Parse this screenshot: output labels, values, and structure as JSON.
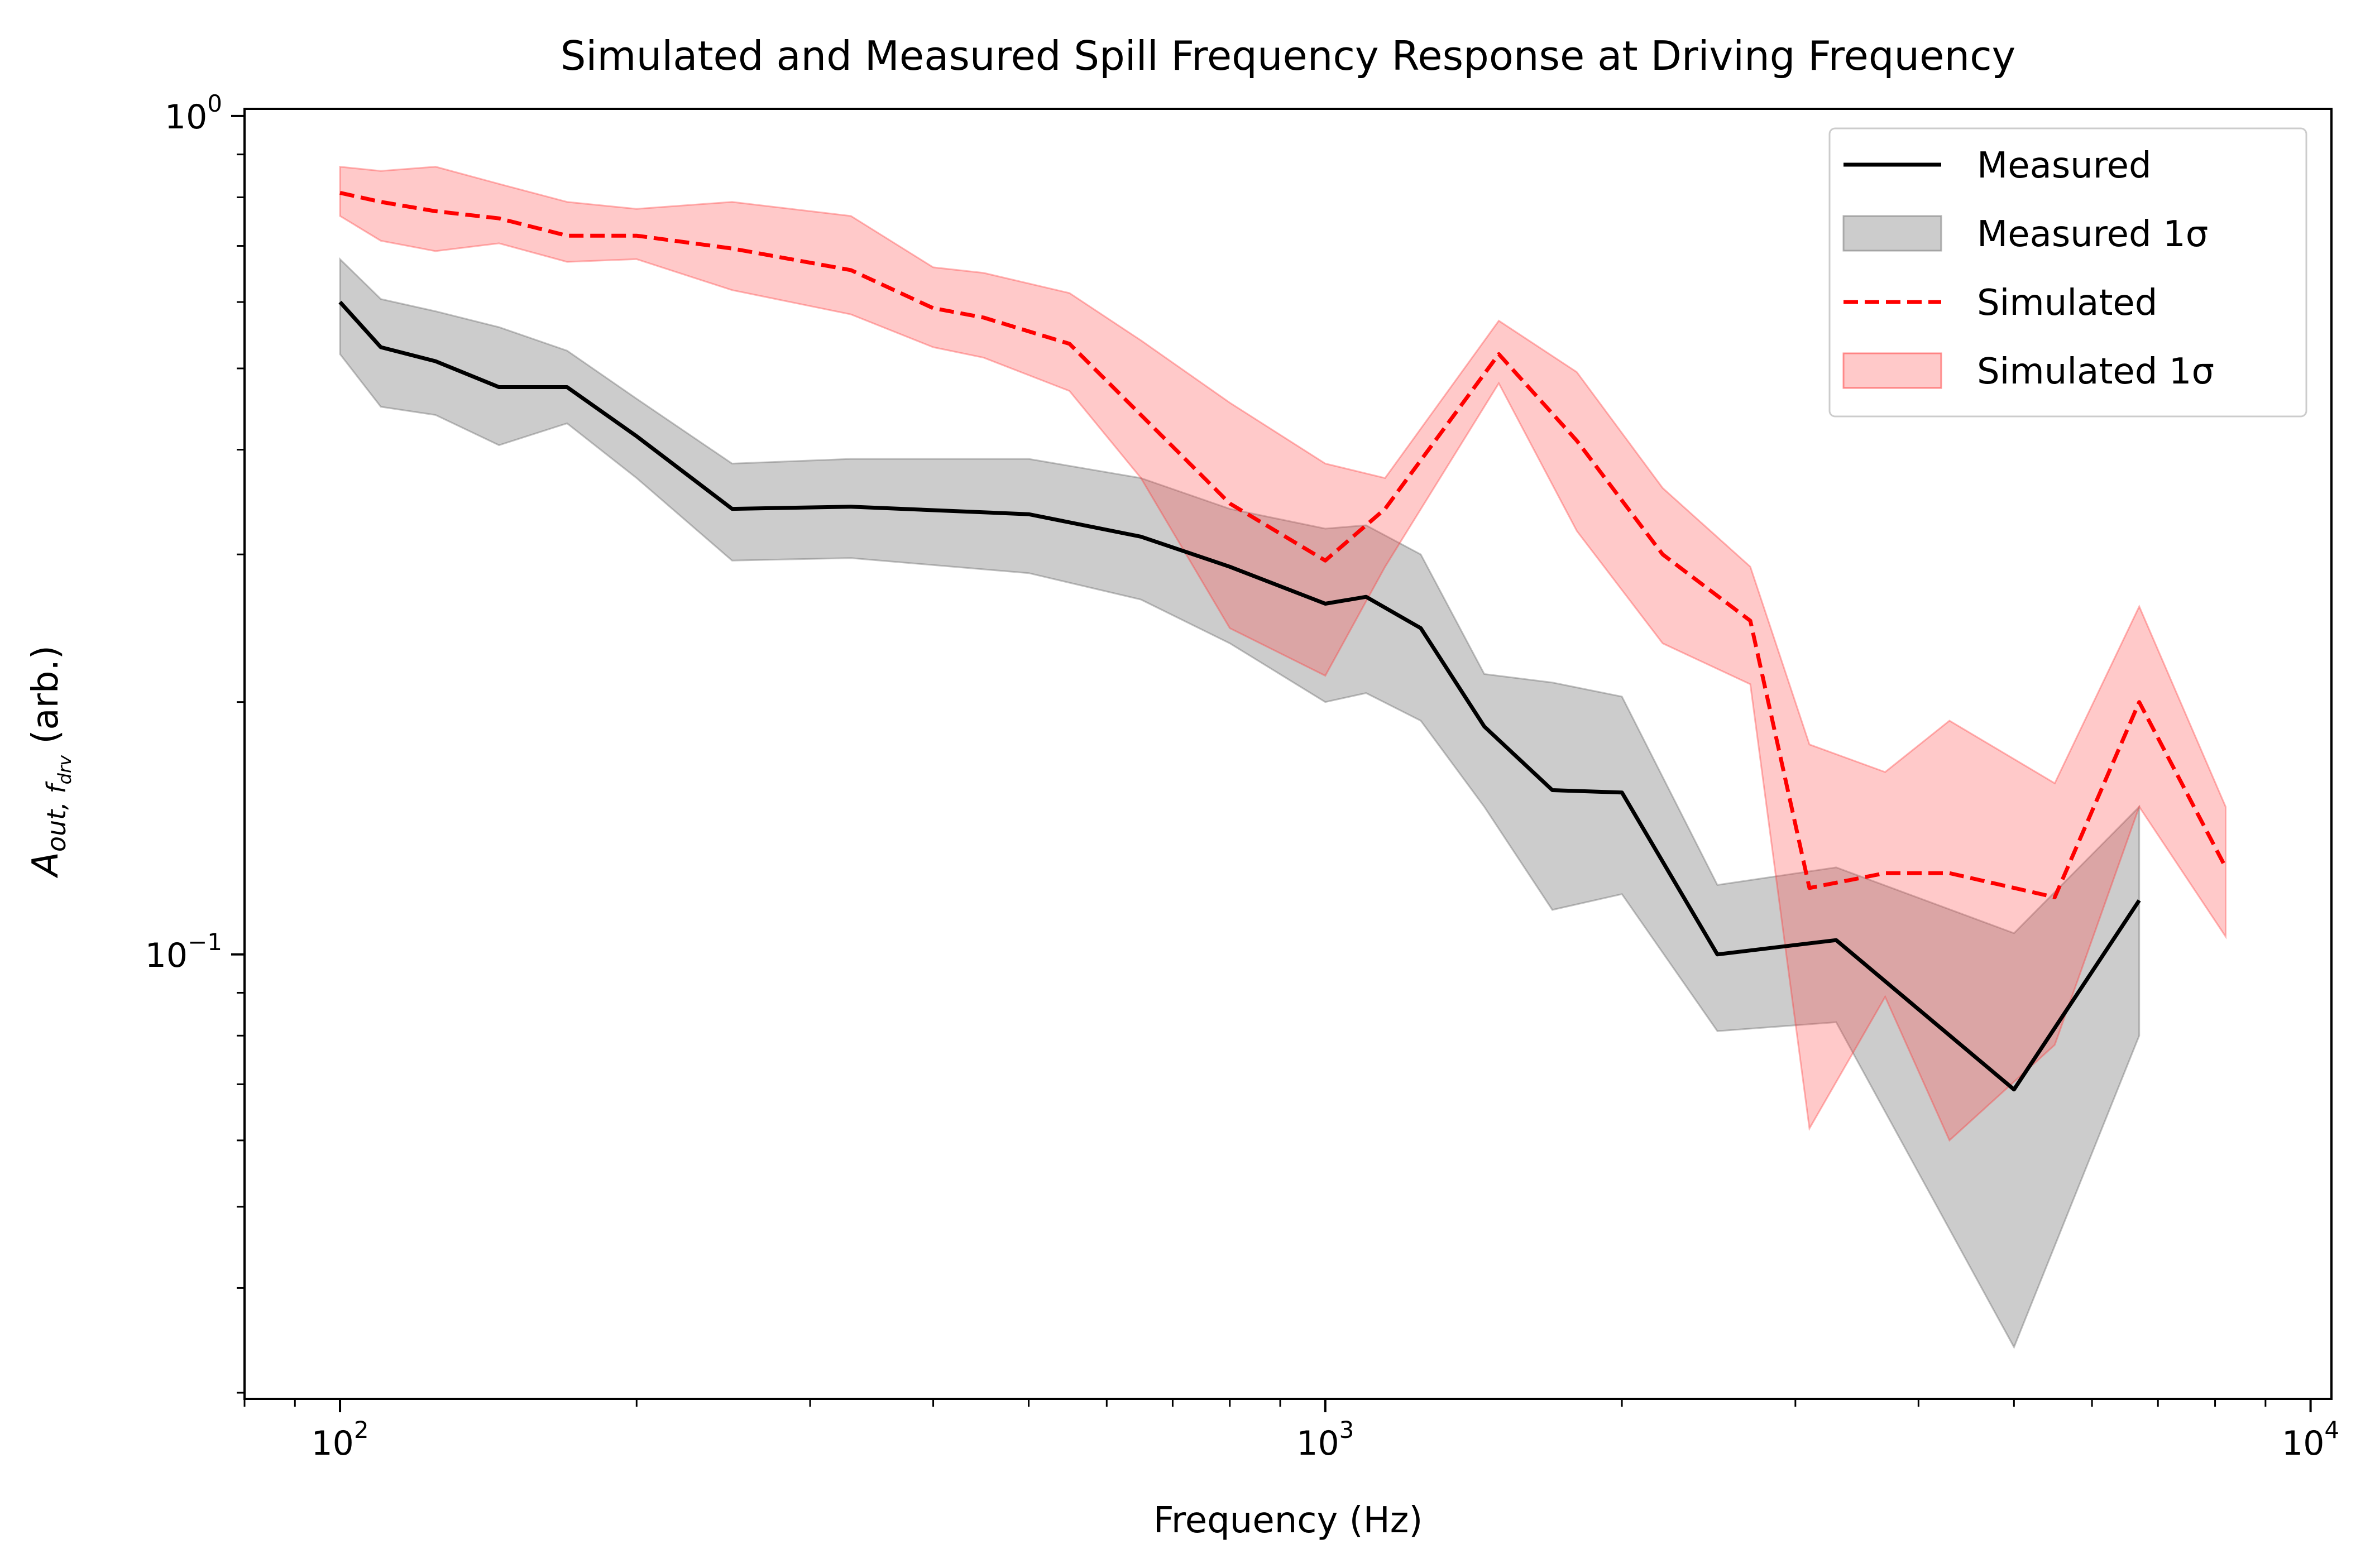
{
  "chart_data": {
    "type": "line",
    "title": "Simulated and Measured Spill Frequency Response at Driving Frequency",
    "xlabel": "Frequency (Hz)",
    "ylabel_main": "A",
    "ylabel_sub": "out, f",
    "ylabel_subsub": "drv",
    "ylabel_suffix": " (arb.)",
    "xscale": "log",
    "yscale": "log",
    "xlim": [
      80,
      10500
    ],
    "ylim": [
      0.0295,
      1.02
    ],
    "x_ticks": [
      {
        "value": 100,
        "base": "10",
        "exp": "2"
      },
      {
        "value": 1000,
        "base": "10",
        "exp": "3"
      },
      {
        "value": 10000,
        "base": "10",
        "exp": "4"
      }
    ],
    "y_ticks": [
      {
        "value": 0.1,
        "base": "10",
        "exp": "−1"
      },
      {
        "value": 1.0,
        "base": "10",
        "exp": "0"
      }
    ],
    "grid": false,
    "legend_position": "top-right",
    "legend": [
      {
        "label": "Measured",
        "kind": "line",
        "color": "#000000",
        "dash": "solid"
      },
      {
        "label": "Measured 1σ",
        "kind": "band",
        "color": "#808080"
      },
      {
        "label": "Simulated",
        "kind": "line",
        "color": "#ff0000",
        "dash": "dashed"
      },
      {
        "label": "Simulated 1σ",
        "kind": "band",
        "color": "#ff4d4d"
      }
    ],
    "series": [
      {
        "name": "Measured",
        "color": "#000000",
        "dash": "solid",
        "x": [
          100,
          110,
          125,
          145,
          170,
          200,
          250,
          330,
          500,
          650,
          800,
          1000,
          1100,
          1250,
          1450,
          1700,
          2000,
          2500,
          3300,
          5000,
          6700
        ],
        "y": [
          0.6,
          0.53,
          0.51,
          0.475,
          0.475,
          0.415,
          0.34,
          0.342,
          0.335,
          0.315,
          0.29,
          0.262,
          0.267,
          0.245,
          0.187,
          0.157,
          0.156,
          0.1,
          0.104,
          0.069,
          0.116
        ],
        "band_lower": [
          0.52,
          0.45,
          0.44,
          0.405,
          0.43,
          0.37,
          0.295,
          0.297,
          0.285,
          0.265,
          0.235,
          0.2,
          0.205,
          0.19,
          0.15,
          0.113,
          0.118,
          0.081,
          0.083,
          0.034,
          0.08
        ],
        "band_upper": [
          0.675,
          0.605,
          0.585,
          0.56,
          0.525,
          0.46,
          0.385,
          0.39,
          0.39,
          0.37,
          0.34,
          0.322,
          0.325,
          0.3,
          0.216,
          0.211,
          0.203,
          0.121,
          0.127,
          0.106,
          0.15
        ]
      },
      {
        "name": "Simulated",
        "color": "#ff0000",
        "dash": "dashed",
        "x": [
          100,
          110,
          125,
          145,
          170,
          200,
          250,
          330,
          400,
          450,
          550,
          650,
          800,
          1000,
          1150,
          1500,
          1800,
          2200,
          2700,
          3100,
          3700,
          4300,
          5500,
          6700,
          8200
        ],
        "y": [
          0.81,
          0.79,
          0.77,
          0.755,
          0.72,
          0.72,
          0.695,
          0.655,
          0.59,
          0.575,
          0.535,
          0.44,
          0.345,
          0.295,
          0.34,
          0.52,
          0.41,
          0.3,
          0.25,
          0.12,
          0.125,
          0.125,
          0.117,
          0.2,
          0.127
        ],
        "band_lower": [
          0.76,
          0.71,
          0.69,
          0.705,
          0.67,
          0.675,
          0.62,
          0.58,
          0.53,
          0.515,
          0.47,
          0.37,
          0.245,
          0.215,
          0.29,
          0.48,
          0.32,
          0.235,
          0.21,
          0.062,
          0.089,
          0.06,
          0.078,
          0.15,
          0.105
        ],
        "band_upper": [
          0.87,
          0.86,
          0.87,
          0.83,
          0.79,
          0.775,
          0.79,
          0.76,
          0.66,
          0.65,
          0.615,
          0.54,
          0.455,
          0.385,
          0.37,
          0.57,
          0.495,
          0.36,
          0.29,
          0.178,
          0.165,
          0.19,
          0.16,
          0.26,
          0.15
        ]
      }
    ]
  }
}
